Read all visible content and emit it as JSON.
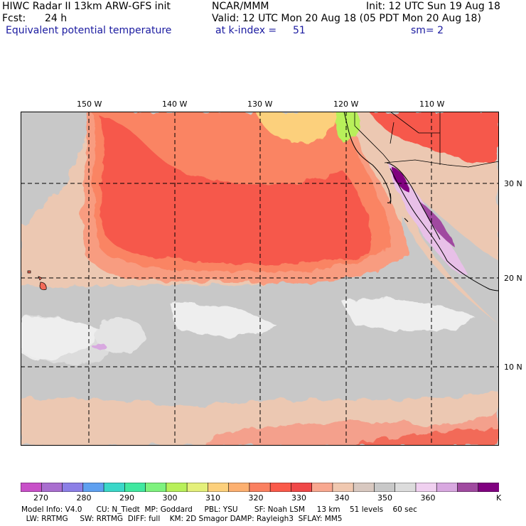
{
  "header": {
    "title_left": "HIWC Radar II 13km ARW-GFS init",
    "org": "NCAR/MMM",
    "init": "Init: 12 UTC Sun 19 Aug 18",
    "fcst_label": "Fcst:",
    "fcst_value": "24 h",
    "valid": "Valid: 12 UTC Mon 20 Aug 18 (05 PDT Mon 20 Aug 18)",
    "field": "Equivalent potential temperature",
    "level": "at k-index =",
    "level_value": "51",
    "smooth": "sm= 2"
  },
  "map": {
    "lon_labels": [
      "150 W",
      "140 W",
      "130 W",
      "120 W",
      "110 W"
    ],
    "lat_labels": [
      "30 N",
      "20 N",
      "10 N"
    ]
  },
  "colorbar": {
    "unit": "K",
    "tick_labels": [
      "270",
      "280",
      "290",
      "300",
      "310",
      "320",
      "330",
      "340",
      "350",
      "360"
    ],
    "colors": [
      "#c850c8",
      "#a96ecf",
      "#8c7fe6",
      "#5fa0f0",
      "#3ad7c8",
      "#40e8a0",
      "#7ef27e",
      "#b8f05a",
      "#e4f07a",
      "#fcd07c",
      "#fcb070",
      "#fa8060",
      "#fa5a4a",
      "#f04848",
      "#f8a890",
      "#f0c8b0",
      "#d8c8c0",
      "#c8c8c8",
      "#dcdcdc",
      "#f0d0f0",
      "#d8a8e0",
      "#a04aa0",
      "#800080"
    ]
  },
  "footer": {
    "line1": "Model Info: V4.0      CU: N_Tiedt  MP: Goddard     PBL: YSU       SF: Noah LSM     13 km    51 levels    60 sec",
    "line2": "  LW: RRTMG     SW: RRTMG  DIFF: full    KM: 2D Smagor DAMP: Rayleigh3  SFLAY: MM5"
  }
}
